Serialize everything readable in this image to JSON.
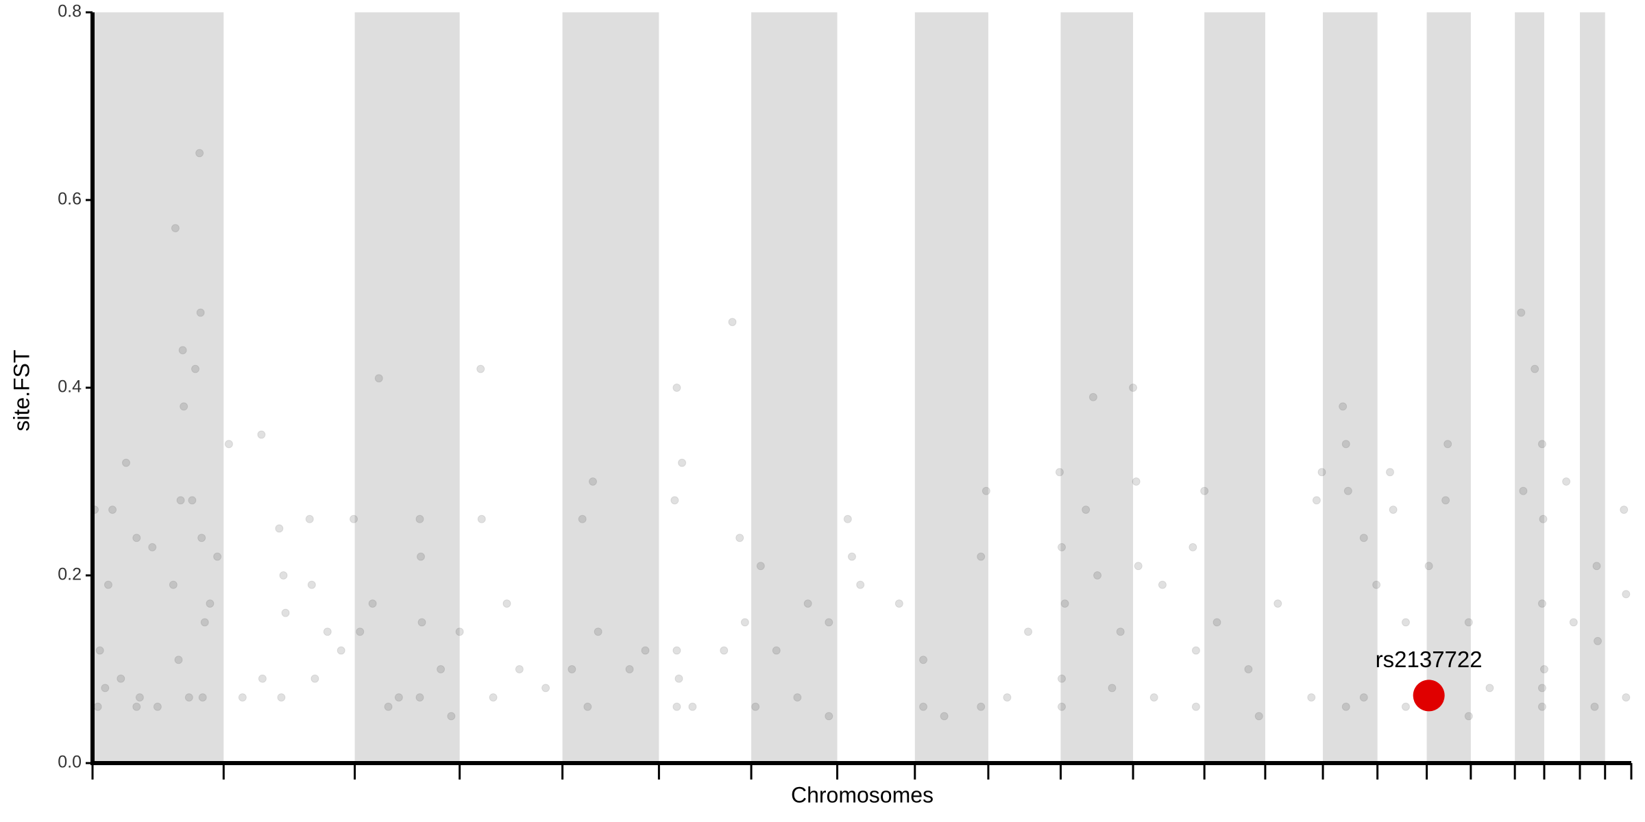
{
  "chart_data": {
    "type": "scatter",
    "x_label": "Chromosomes",
    "y_label": "site.FST",
    "xlim": [
      0,
      1467
    ],
    "ylim": [
      0,
      0.8
    ],
    "yticks": [
      {
        "value": 0,
        "label": "0.0"
      },
      0.2,
      0.4,
      0.6,
      0.8
    ],
    "xticks": [
      0,
      125,
      250,
      350,
      448,
      540,
      628,
      710,
      784,
      854,
      923,
      992,
      1060,
      1118,
      1173,
      1225,
      1272,
      1314,
      1356,
      1384,
      1418,
      1442,
      1467
    ],
    "band_color": "#dedede",
    "series": [
      {
        "color": "#000000",
        "opacity": 0.12,
        "x": [
          2,
          5,
          7,
          12,
          15,
          19,
          27,
          32,
          42,
          45,
          57,
          62,
          77,
          79,
          82,
          84,
          86,
          87,
          95,
          98,
          102,
          103,
          104,
          105,
          107,
          112,
          119,
          130,
          143,
          161,
          178,
          180,
          182,
          184,
          207,
          209,
          212,
          224,
          237,
          249,
          255,
          267,
          273,
          282,
          292,
          312,
          313,
          314,
          332,
          350,
          370,
          371,
          382,
          395,
          407,
          432,
          457,
          467,
          477,
          482,
          512,
          527,
          555,
          557,
          559,
          562,
          572,
          602,
          610,
          617,
          622,
          637,
          652,
          682,
          702,
          720,
          724,
          732,
          769,
          792,
          812,
          847,
          852,
          872,
          892,
          922,
          924,
          927,
          947,
          954,
          958,
          980,
          992,
          995,
          997,
          1020,
          1049,
          1052,
          1060,
          1072,
          1102,
          1130,
          1162,
          1167,
          1172,
          1192,
          1195,
          1197,
          1212,
          1224,
          1237,
          1240,
          1252,
          1274,
          1290,
          1292,
          1312,
          1332,
          1362,
          1364,
          1375,
          1382,
          1383,
          1382,
          1384,
          1405,
          1412,
          1434,
          1435,
          1460,
          1462,
          42,
          92,
          162,
          312,
          342,
          472,
          557,
          557,
          632,
          672,
          702,
          792,
          847,
          924,
          924,
          972,
          1012,
          1052,
          1112,
          1195,
          1212,
          1252,
          1312,
          1382,
          1382,
          1432,
          1462
        ],
        "values": [
          0.27,
          0.06,
          0.12,
          0.08,
          0.19,
          0.27,
          0.09,
          0.32,
          0.24,
          0.07,
          0.23,
          0.06,
          0.19,
          0.57,
          0.11,
          0.28,
          0.44,
          0.38,
          0.28,
          0.42,
          0.65,
          0.48,
          0.24,
          0.07,
          0.15,
          0.17,
          0.22,
          0.34,
          0.07,
          0.35,
          0.25,
          0.07,
          0.2,
          0.16,
          0.26,
          0.19,
          0.09,
          0.14,
          0.12,
          0.26,
          0.14,
          0.17,
          0.41,
          0.06,
          0.07,
          0.26,
          0.22,
          0.15,
          0.1,
          0.14,
          0.42,
          0.26,
          0.07,
          0.17,
          0.1,
          0.08,
          0.1,
          0.26,
          0.3,
          0.14,
          0.1,
          0.12,
          0.28,
          0.4,
          0.09,
          0.32,
          0.06,
          0.12,
          0.47,
          0.24,
          0.15,
          0.21,
          0.12,
          0.17,
          0.15,
          0.26,
          0.22,
          0.19,
          0.17,
          0.11,
          0.05,
          0.22,
          0.29,
          0.07,
          0.14,
          0.31,
          0.23,
          0.17,
          0.27,
          0.39,
          0.2,
          0.14,
          0.4,
          0.3,
          0.21,
          0.19,
          0.23,
          0.12,
          0.29,
          0.15,
          0.1,
          0.17,
          0.07,
          0.28,
          0.31,
          0.38,
          0.34,
          0.29,
          0.24,
          0.19,
          0.31,
          0.27,
          0.15,
          0.21,
          0.28,
          0.34,
          0.15,
          0.08,
          0.48,
          0.29,
          0.42,
          0.34,
          0.26,
          0.17,
          0.1,
          0.3,
          0.15,
          0.21,
          0.13,
          0.27,
          0.18,
          0.06,
          0.07,
          0.09,
          0.07,
          0.05,
          0.06,
          0.06,
          0.12,
          0.06,
          0.07,
          0.05,
          0.06,
          0.06,
          0.06,
          0.09,
          0.08,
          0.07,
          0.06,
          0.05,
          0.06,
          0.07,
          0.06,
          0.05,
          0.06,
          0.08,
          0.06,
          0.07
        ]
      }
    ],
    "highlight": {
      "label": "rs2137722",
      "x": 1274,
      "value": 0.072,
      "color": "#e00000"
    }
  }
}
